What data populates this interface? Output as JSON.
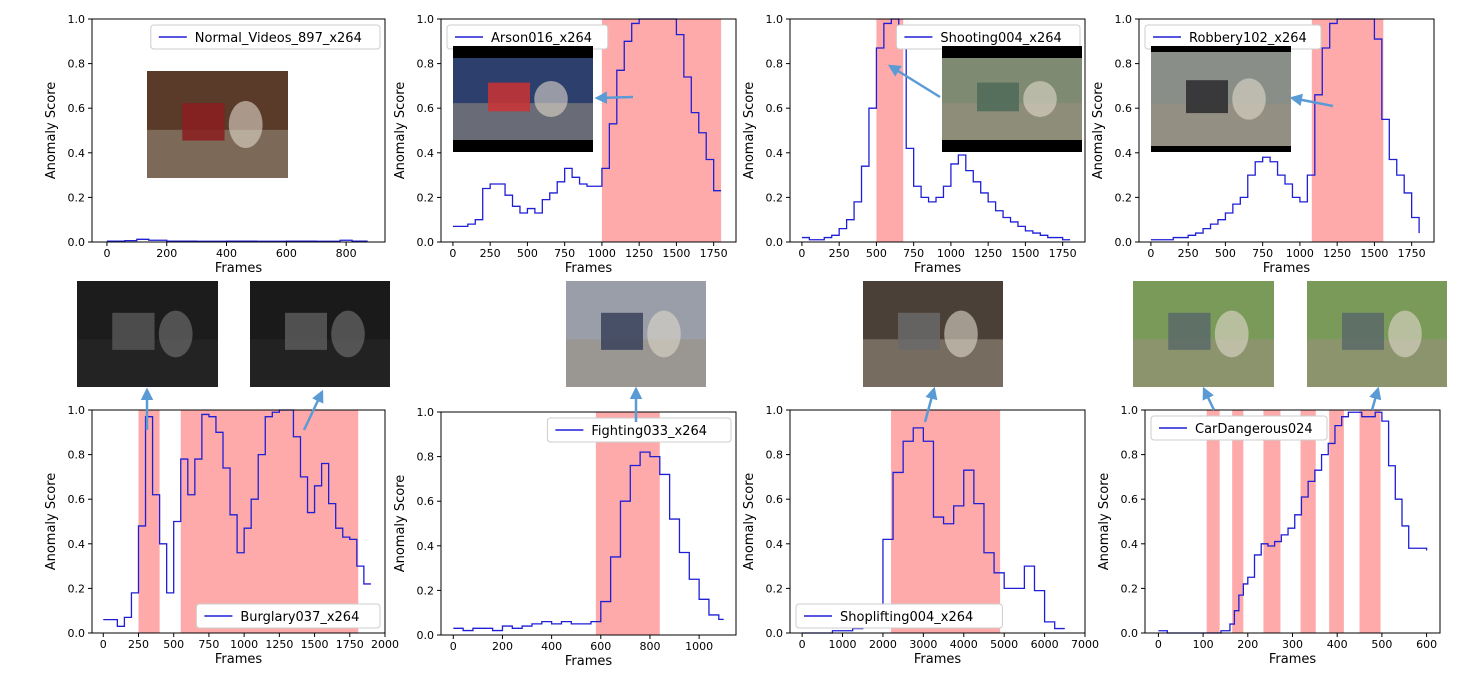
{
  "figure": {
    "colors": {
      "line": "#1f1fd6",
      "anomaly_region": "#ffaaaa",
      "arrow": "#5b9bd5",
      "axes": "#000000"
    },
    "thumbnail_icon": "surveillance-frame-thumbnail"
  },
  "chart_data": [
    {
      "type": "line",
      "xlabel": "Frames",
      "ylabel": "Anomaly Score",
      "legend": "Normal_Videos_897_x264",
      "legend_loc": "upper-right",
      "xlim": [
        -50,
        930
      ],
      "ylim": [
        0,
        1
      ],
      "xticks": [
        0,
        200,
        400,
        600,
        800
      ],
      "yticks": [
        0.0,
        0.2,
        0.4,
        0.6,
        0.8,
        1.0
      ],
      "series": [
        {
          "x": [
            0,
            60,
            100,
            140,
            200,
            300,
            400,
            500,
            600,
            700,
            780,
            820,
            870
          ],
          "y": [
            0.004,
            0.006,
            0.012,
            0.008,
            0.004,
            0.003,
            0.004,
            0.003,
            0.004,
            0.003,
            0.008,
            0.004,
            0.003
          ]
        }
      ],
      "anomaly_regions": []
    },
    {
      "type": "line",
      "xlabel": "Frames",
      "ylabel": "Anomaly Score",
      "legend": "Arson016_x264",
      "legend_loc": "upper-left",
      "xlim": [
        -80,
        1900
      ],
      "ylim": [
        0,
        1
      ],
      "xticks": [
        0,
        250,
        500,
        750,
        1000,
        1250,
        1500,
        1750
      ],
      "yticks": [
        0.0,
        0.2,
        0.4,
        0.6,
        0.8,
        1.0
      ],
      "series": [
        {
          "x": [
            0,
            100,
            150,
            200,
            250,
            300,
            350,
            400,
            450,
            500,
            550,
            600,
            650,
            700,
            750,
            800,
            850,
            900,
            950,
            1000,
            1050,
            1100,
            1150,
            1200,
            1250,
            1300,
            1350,
            1400,
            1450,
            1500,
            1550,
            1600,
            1650,
            1700,
            1750,
            1800
          ],
          "y": [
            0.07,
            0.08,
            0.1,
            0.24,
            0.26,
            0.26,
            0.21,
            0.16,
            0.13,
            0.15,
            0.13,
            0.19,
            0.22,
            0.27,
            0.33,
            0.29,
            0.26,
            0.25,
            0.25,
            0.33,
            0.53,
            0.77,
            0.9,
            0.98,
            1.0,
            1.0,
            1.0,
            1.0,
            1.0,
            0.93,
            0.74,
            0.58,
            0.49,
            0.37,
            0.23,
            0.23
          ]
        }
      ],
      "anomaly_regions": [
        [
          1000,
          1800
        ]
      ]
    },
    {
      "type": "line",
      "xlabel": "Frames",
      "ylabel": "Anomaly Score",
      "legend": "Shooting004_x264",
      "legend_loc": "upper-right",
      "xlim": [
        -80,
        1900
      ],
      "ylim": [
        0,
        1
      ],
      "xticks": [
        0,
        250,
        500,
        750,
        1000,
        1250,
        1500,
        1750
      ],
      "yticks": [
        0.0,
        0.2,
        0.4,
        0.6,
        0.8,
        1.0
      ],
      "series": [
        {
          "x": [
            0,
            50,
            100,
            150,
            200,
            250,
            300,
            350,
            400,
            450,
            500,
            550,
            600,
            650,
            700,
            750,
            800,
            850,
            900,
            950,
            1000,
            1050,
            1100,
            1150,
            1200,
            1250,
            1300,
            1350,
            1400,
            1450,
            1500,
            1550,
            1600,
            1650,
            1700,
            1750,
            1800
          ],
          "y": [
            0.02,
            0.01,
            0.01,
            0.02,
            0.03,
            0.06,
            0.1,
            0.18,
            0.34,
            0.6,
            0.87,
            0.98,
            1.0,
            0.95,
            0.42,
            0.25,
            0.2,
            0.18,
            0.2,
            0.25,
            0.35,
            0.39,
            0.32,
            0.27,
            0.22,
            0.18,
            0.14,
            0.11,
            0.09,
            0.07,
            0.05,
            0.04,
            0.03,
            0.02,
            0.02,
            0.01,
            0.01
          ]
        }
      ],
      "anomaly_regions": [
        [
          500,
          680
        ]
      ]
    },
    {
      "type": "line",
      "xlabel": "Frames",
      "ylabel": "Anomaly Score",
      "legend": "Robbery102_x264",
      "legend_loc": "upper-left",
      "xlim": [
        -80,
        1900
      ],
      "ylim": [
        0,
        1
      ],
      "xticks": [
        0,
        250,
        500,
        750,
        1000,
        1250,
        1500,
        1750
      ],
      "yticks": [
        0.0,
        0.2,
        0.4,
        0.6,
        0.8,
        1.0
      ],
      "series": [
        {
          "x": [
            0,
            100,
            150,
            200,
            250,
            300,
            350,
            400,
            450,
            500,
            550,
            600,
            650,
            700,
            750,
            800,
            850,
            900,
            950,
            1000,
            1050,
            1100,
            1150,
            1200,
            1250,
            1300,
            1350,
            1400,
            1450,
            1500,
            1550,
            1600,
            1650,
            1700,
            1750,
            1800
          ],
          "y": [
            0.01,
            0.01,
            0.02,
            0.02,
            0.03,
            0.04,
            0.06,
            0.08,
            0.1,
            0.13,
            0.17,
            0.2,
            0.3,
            0.36,
            0.38,
            0.36,
            0.3,
            0.26,
            0.2,
            0.18,
            0.3,
            0.66,
            0.87,
            0.98,
            1.0,
            1.0,
            1.0,
            1.0,
            1.0,
            0.91,
            0.55,
            0.37,
            0.3,
            0.22,
            0.11,
            0.04
          ]
        }
      ],
      "anomaly_regions": [
        [
          1080,
          1560
        ]
      ]
    },
    {
      "type": "line",
      "xlabel": "Frames",
      "ylabel": "Anomaly Score",
      "legend": "Burglary037_x264",
      "legend_loc": "lower-right",
      "xlim": [
        -80,
        2000
      ],
      "ylim": [
        0,
        1
      ],
      "xticks": [
        0,
        250,
        500,
        750,
        1000,
        1250,
        1500,
        1750,
        2000
      ],
      "yticks": [
        0.0,
        0.2,
        0.4,
        0.6,
        0.8,
        1.0
      ],
      "series": [
        {
          "x": [
            0,
            100,
            150,
            200,
            250,
            300,
            350,
            400,
            450,
            500,
            550,
            600,
            650,
            700,
            750,
            800,
            850,
            900,
            950,
            1000,
            1050,
            1100,
            1150,
            1200,
            1250,
            1300,
            1350,
            1400,
            1450,
            1500,
            1550,
            1600,
            1650,
            1700,
            1750,
            1800,
            1850,
            1900
          ],
          "y": [
            0.06,
            0.03,
            0.07,
            0.18,
            0.48,
            0.97,
            0.62,
            0.4,
            0.18,
            0.5,
            0.78,
            0.62,
            0.78,
            0.98,
            0.97,
            0.9,
            0.74,
            0.53,
            0.36,
            0.47,
            0.6,
            0.8,
            0.97,
            0.99,
            1.0,
            1.0,
            0.88,
            0.7,
            0.54,
            0.66,
            0.76,
            0.58,
            0.47,
            0.43,
            0.42,
            0.3,
            0.22,
            0.22
          ]
        }
      ],
      "anomaly_regions": [
        [
          250,
          400
        ],
        [
          550,
          1810
        ]
      ]
    },
    {
      "type": "line",
      "xlabel": "Frames",
      "ylabel": "Anomaly Score",
      "legend": "Fighting033_x264",
      "legend_loc": "upper-right",
      "xlim": [
        -50,
        1150
      ],
      "ylim": [
        0,
        1
      ],
      "xticks": [
        0,
        200,
        400,
        600,
        800,
        1000
      ],
      "yticks": [
        0.0,
        0.2,
        0.4,
        0.6,
        0.8,
        1.0
      ],
      "series": [
        {
          "x": [
            0,
            40,
            80,
            120,
            160,
            200,
            240,
            280,
            320,
            360,
            400,
            440,
            480,
            520,
            560,
            600,
            640,
            680,
            720,
            760,
            800,
            840,
            880,
            920,
            960,
            1000,
            1040,
            1080,
            1100
          ],
          "y": [
            0.03,
            0.02,
            0.03,
            0.03,
            0.02,
            0.04,
            0.03,
            0.04,
            0.05,
            0.06,
            0.05,
            0.06,
            0.05,
            0.05,
            0.06,
            0.15,
            0.35,
            0.6,
            0.76,
            0.82,
            0.8,
            0.72,
            0.52,
            0.37,
            0.25,
            0.16,
            0.09,
            0.07,
            0.07
          ]
        }
      ],
      "anomaly_regions": [
        [
          580,
          840
        ]
      ]
    },
    {
      "type": "line",
      "xlabel": "Frames",
      "ylabel": "Anomaly Score",
      "legend": "Shoplifting004_x264",
      "legend_loc": "lower-left",
      "xlim": [
        -300,
        7000
      ],
      "ylim": [
        0,
        1
      ],
      "xticks": [
        0,
        1000,
        2000,
        3000,
        4000,
        5000,
        6000,
        7000
      ],
      "yticks": [
        0.0,
        0.2,
        0.4,
        0.6,
        0.8,
        1.0
      ],
      "series": [
        {
          "x": [
            0,
            250,
            500,
            750,
            1000,
            1250,
            1500,
            1750,
            2000,
            2250,
            2500,
            2750,
            3000,
            3250,
            3500,
            3750,
            4000,
            4250,
            4500,
            4750,
            5000,
            5250,
            5500,
            5750,
            6000,
            6250,
            6500
          ],
          "y": [
            0.0,
            0.0,
            0.0,
            0.01,
            0.01,
            0.02,
            0.04,
            0.12,
            0.42,
            0.72,
            0.86,
            0.92,
            0.86,
            0.52,
            0.49,
            0.57,
            0.73,
            0.58,
            0.36,
            0.27,
            0.2,
            0.2,
            0.3,
            0.19,
            0.05,
            0.02,
            0.02
          ]
        }
      ],
      "anomaly_regions": [
        [
          2200,
          4900
        ]
      ]
    },
    {
      "type": "line",
      "xlabel": "Frames",
      "ylabel": "Anomaly Score",
      "legend": "CarDangerous024",
      "legend_loc": "upper-left",
      "xlim": [
        -30,
        630
      ],
      "ylim": [
        0,
        1
      ],
      "xticks": [
        0,
        100,
        200,
        300,
        400,
        500,
        600
      ],
      "yticks": [
        0.0,
        0.2,
        0.4,
        0.6,
        0.8,
        1.0
      ],
      "series": [
        {
          "x": [
            0,
            20,
            40,
            80,
            120,
            140,
            160,
            170,
            180,
            190,
            200,
            215,
            230,
            245,
            260,
            275,
            290,
            305,
            320,
            335,
            350,
            365,
            380,
            395,
            410,
            425,
            440,
            455,
            470,
            485,
            500,
            515,
            530,
            545,
            560,
            600
          ],
          "y": [
            0.01,
            0.0,
            0.0,
            0.0,
            0.0,
            0.01,
            0.04,
            0.1,
            0.17,
            0.22,
            0.25,
            0.35,
            0.4,
            0.39,
            0.41,
            0.44,
            0.47,
            0.53,
            0.61,
            0.68,
            0.73,
            0.8,
            0.85,
            0.93,
            0.97,
            0.99,
            0.99,
            0.97,
            0.97,
            0.99,
            0.95,
            0.75,
            0.6,
            0.48,
            0.38,
            0.37
          ]
        }
      ],
      "anomaly_regions": [
        [
          108,
          137
        ],
        [
          165,
          190
        ],
        [
          235,
          273
        ],
        [
          318,
          352
        ],
        [
          382,
          415
        ],
        [
          450,
          497
        ]
      ]
    }
  ]
}
